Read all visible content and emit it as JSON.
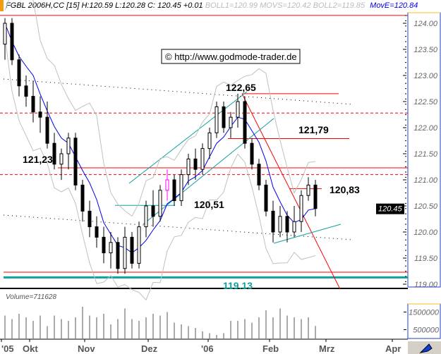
{
  "header": {
    "symbol_info": "FGBL 2006H,CC [15] H:120.59 L:120.28 C: 120.45 +0.01",
    "boll_info": "BOLL1=120.99 MOVS=120.42 BOLL2=119.85",
    "move_info": "MovE=120.84"
  },
  "copyright": "© http://www.godmode-trader.de",
  "colors": {
    "support": "#ff0000",
    "channel": "#0fa0a0",
    "ma": "#0000ee",
    "boll": "#c0c0c0",
    "axis_border": "#1f3fd0",
    "axis_top": "#f0c020",
    "highlight_candle": "#ff00ff"
  },
  "chart_data": {
    "type": "candlestick",
    "price_axis": {
      "ylim": [
        118.95,
        124.2
      ],
      "ticks": [
        "124.00",
        "123.50",
        "123.00",
        "122.50",
        "122.00",
        "121.50",
        "121.00",
        "120.50",
        "120.00",
        "119.50",
        "119.00"
      ],
      "tick_values": [
        124,
        123.5,
        123,
        122.5,
        122,
        121.5,
        121,
        120.5,
        120,
        119.5,
        119
      ]
    },
    "last_price": "120.45",
    "date_labels": [
      "'05",
      "Okt",
      "Nov",
      "Dez",
      "'06",
      "Feb",
      "Mrz",
      "Apr"
    ],
    "candles": [
      [
        123.6,
        124.1,
        123.3,
        124.0
      ],
      [
        124.0,
        124.1,
        123.2,
        123.3
      ],
      [
        123.3,
        123.4,
        122.6,
        122.8
      ],
      [
        122.8,
        123.0,
        122.4,
        122.6
      ],
      [
        122.6,
        122.9,
        122.1,
        122.3
      ],
      [
        122.3,
        122.6,
        121.9,
        122.2
      ],
      [
        122.2,
        122.5,
        121.6,
        121.7
      ],
      [
        121.7,
        121.9,
        121.2,
        121.3
      ],
      [
        121.3,
        121.6,
        121.0,
        121.5
      ],
      [
        121.5,
        121.9,
        121.2,
        121.8
      ],
      [
        121.8,
        121.9,
        120.8,
        120.9
      ],
      [
        120.9,
        121.0,
        120.2,
        120.4
      ],
      [
        120.4,
        120.6,
        119.9,
        120.1
      ],
      [
        120.1,
        120.3,
        119.7,
        119.9
      ],
      [
        119.9,
        120.1,
        119.4,
        119.6
      ],
      [
        119.6,
        120.0,
        119.3,
        119.8
      ],
      [
        119.8,
        119.9,
        119.2,
        119.3
      ],
      [
        119.3,
        120.1,
        119.2,
        119.9
      ],
      [
        119.9,
        120.0,
        119.3,
        119.4
      ],
      [
        119.4,
        120.2,
        119.3,
        120.1
      ],
      [
        120.1,
        120.6,
        119.9,
        120.5
      ],
      [
        120.5,
        120.8,
        120.1,
        120.3
      ],
      [
        120.3,
        120.9,
        120.2,
        120.8
      ],
      [
        120.8,
        121.2,
        120.6,
        121.0
      ],
      [
        121.0,
        121.1,
        120.5,
        120.6
      ],
      [
        120.6,
        121.2,
        120.5,
        121.1
      ],
      [
        121.1,
        121.5,
        120.9,
        121.4
      ],
      [
        121.4,
        121.6,
        121.0,
        121.2
      ],
      [
        121.2,
        121.7,
        121.1,
        121.6
      ],
      [
        121.6,
        122.0,
        121.4,
        121.9
      ],
      [
        121.9,
        122.5,
        121.8,
        122.4
      ],
      [
        122.4,
        122.5,
        121.9,
        122.0
      ],
      [
        122.0,
        122.3,
        121.8,
        122.2
      ],
      [
        122.2,
        122.65,
        122.0,
        122.5
      ],
      [
        122.5,
        122.6,
        121.6,
        121.7
      ],
      [
        121.7,
        121.8,
        121.2,
        121.3
      ],
      [
        121.3,
        121.4,
        120.8,
        120.9
      ],
      [
        120.9,
        121.0,
        120.3,
        120.4
      ],
      [
        120.4,
        120.6,
        119.8,
        120.0
      ],
      [
        120.0,
        120.5,
        119.9,
        120.3
      ],
      [
        120.3,
        120.4,
        119.8,
        120.0
      ],
      [
        120.0,
        120.5,
        119.9,
        120.2
      ],
      [
        120.2,
        120.8,
        120.0,
        120.7
      ],
      [
        120.7,
        121.05,
        120.6,
        120.9
      ],
      [
        120.9,
        121.0,
        120.3,
        120.45
      ]
    ],
    "volume_label": "Volume=711628",
    "volume_axis": {
      "ylim": [
        0,
        2000000
      ],
      "ticks": [
        "1500000",
        "500000"
      ],
      "tick_values": [
        1500000,
        500000
      ]
    },
    "volumes": [
      1300000,
      1100000,
      1400000,
      1200000,
      1000000,
      1300000,
      700000,
      1300000,
      1100000,
      1000000,
      1200000,
      1800000,
      1300000,
      1200000,
      1400000,
      800000,
      1100000,
      1700000,
      1100000,
      1000000,
      1200000,
      1400000,
      1300000,
      1500000,
      900000,
      800000,
      700000,
      600000,
      400000,
      300000,
      200000,
      300000,
      1000000,
      1000000,
      1100000,
      900000,
      1200000,
      1600000,
      1200000,
      1700000,
      1300000,
      1200000,
      1100000,
      1200000,
      711628
    ],
    "levels": [
      {
        "price": 124.15,
        "style": "solid",
        "color": "#ff0000"
      },
      {
        "price": 122.28,
        "style": "dashed",
        "color": "#ff0000"
      },
      {
        "price": 121.23,
        "style": "solid",
        "color": "#ff0000",
        "label": "121,23"
      },
      {
        "price": 121.1,
        "style": "dashed",
        "color": "#ff0000"
      },
      {
        "price": 119.23,
        "style": "solid",
        "color": "#ff0000"
      },
      {
        "price": 119.13,
        "style": "solid",
        "color": "#0fa0a0",
        "label": "119.13"
      }
    ],
    "annotations": [
      {
        "text": "122,65",
        "price": 122.65
      },
      {
        "text": "121,79",
        "price": 121.79
      },
      {
        "text": "120,83",
        "price": 120.83
      },
      {
        "text": "120,51",
        "price": 120.51
      }
    ]
  }
}
